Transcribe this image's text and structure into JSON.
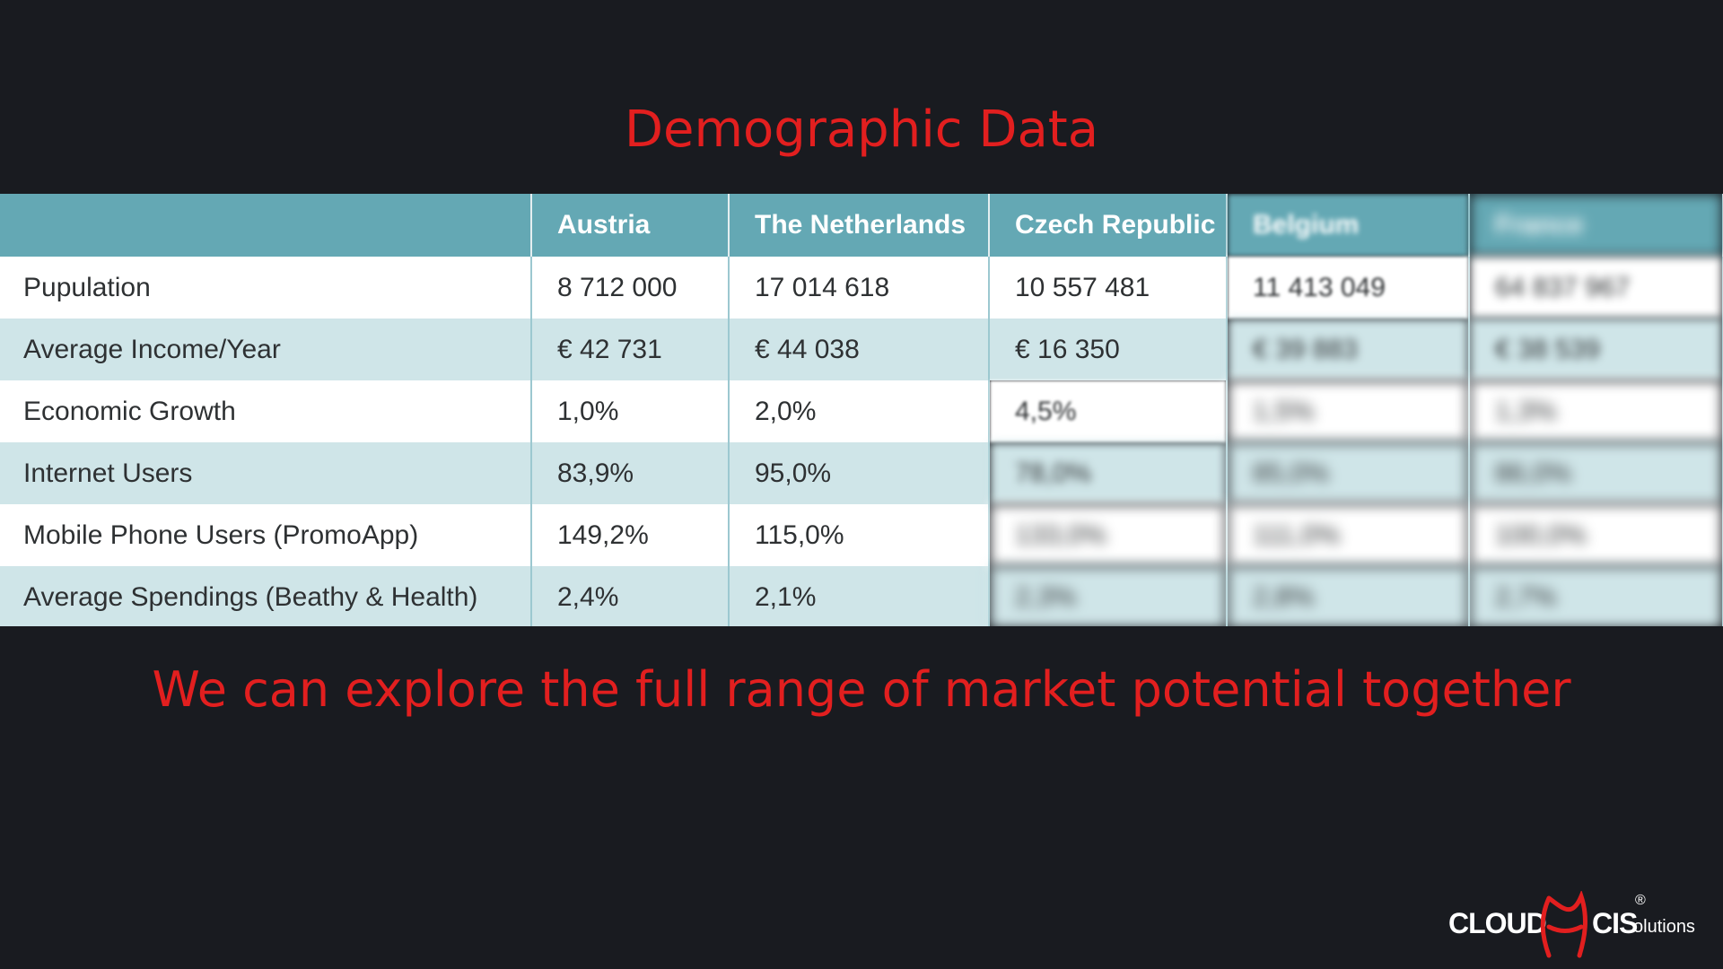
{
  "slide": {
    "title": "Demographic Data",
    "tagline": "We can explore the full range of market potential together"
  },
  "table": {
    "headers": [
      "",
      "Austria",
      "The Netherlands",
      "Czech Republic",
      "Belgium",
      "France"
    ],
    "rows": [
      {
        "label": "Pupulation",
        "values": [
          "8 712 000",
          "17 014 618",
          "10 557 481",
          "11 413 049",
          "64 837 967"
        ]
      },
      {
        "label": "Average Income/Year",
        "values": [
          "€ 42 731",
          "€ 44 038",
          "€ 16 350",
          "€ 39 883",
          "€ 38 539"
        ]
      },
      {
        "label": "Economic Growth",
        "values": [
          "1,0%",
          "2,0%",
          "4,5%",
          "1,5%",
          "1,3%"
        ]
      },
      {
        "label": "Internet Users",
        "values": [
          "83,9%",
          "95,0%",
          "78,0%",
          "85,0%",
          "86,0%"
        ]
      },
      {
        "label": "Mobile Phone Users (PromoApp)",
        "values": [
          "149,2%",
          "115,0%",
          "133,0%",
          "111,0%",
          "100,0%"
        ]
      },
      {
        "label": "Average Spendings (Beathy & Health)",
        "values": [
          "2,4%",
          "2,1%",
          "2,3%",
          "2,8%",
          "2,7%"
        ]
      }
    ]
  },
  "logo": {
    "word1": "CLOUD",
    "word2": "CIS",
    "word3": "olutions",
    "registered": "®",
    "accent_color": "#e21f1f"
  }
}
